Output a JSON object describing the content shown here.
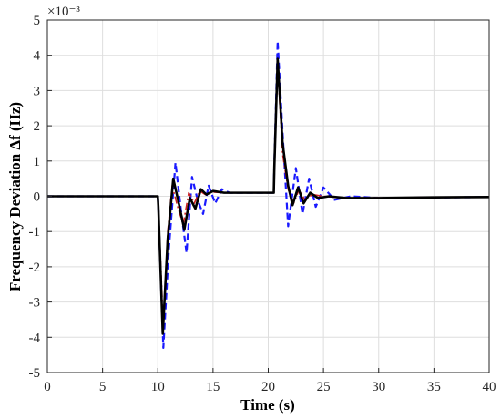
{
  "chart_data": {
    "type": "line",
    "xlabel": "Time (s)",
    "ylabel": "Frequency Deviation Δf (Hz)",
    "y_exponent": "×10⁻³",
    "xlim": [
      0,
      40
    ],
    "ylim": [
      -5,
      5
    ],
    "x_ticks": [
      "0",
      "5",
      "10",
      "15",
      "20",
      "25",
      "30",
      "35",
      "40"
    ],
    "y_ticks": [
      "5",
      "4",
      "3",
      "2",
      "1",
      "0",
      "-1",
      "-2",
      "-3",
      "-4",
      "-5"
    ],
    "grid": true,
    "series": [
      {
        "color": "#000000",
        "style": "solid",
        "x": [
          0,
          10,
          10.05,
          10.45,
          10.9,
          11.4,
          11.9,
          12.4,
          12.9,
          13.4,
          13.9,
          14.4,
          15.0,
          16.0,
          17.0,
          18.0,
          19.0,
          20.0,
          20.5,
          20.55,
          20.85,
          21.3,
          21.8,
          22.2,
          22.7,
          23.2,
          23.8,
          24.5,
          25.5,
          27.0,
          30.0,
          35.0,
          40.0
        ],
        "y": [
          0,
          0,
          -0.3,
          -3.9,
          -1.2,
          0.5,
          -0.2,
          -0.95,
          -0.05,
          -0.35,
          0.2,
          0.05,
          0.15,
          0.1,
          0.1,
          0.1,
          0.1,
          0.1,
          0.1,
          0.8,
          3.9,
          1.5,
          0.3,
          -0.25,
          0.25,
          -0.2,
          0.1,
          -0.05,
          0.0,
          -0.05,
          -0.05,
          -0.03,
          -0.02
        ]
      },
      {
        "color": "#cc2020",
        "style": "dash-dot",
        "x": [
          0,
          10,
          10.05,
          10.5,
          10.9,
          11.3,
          11.8,
          12.3,
          12.8,
          13.3,
          13.8,
          14.3,
          15.0,
          16.0,
          18.0,
          20.0,
          20.5,
          20.55,
          20.85,
          21.3,
          21.8,
          22.3,
          22.8,
          23.3,
          24.0,
          25.0,
          27.0,
          30.0,
          40.0
        ],
        "y": [
          0,
          0,
          -0.3,
          -3.7,
          -1.0,
          0.3,
          -0.3,
          -0.8,
          0.1,
          -0.2,
          0.15,
          0.05,
          0.12,
          0.1,
          0.1,
          0.1,
          0.1,
          0.8,
          3.7,
          1.2,
          0.2,
          -0.2,
          0.2,
          -0.1,
          0.05,
          0.0,
          -0.05,
          -0.04,
          -0.02
        ]
      },
      {
        "color": "#1a1aff",
        "style": "dashed",
        "x": [
          0,
          10,
          10.05,
          10.5,
          11.0,
          11.6,
          12.1,
          12.6,
          13.1,
          13.6,
          14.1,
          14.6,
          15.2,
          15.8,
          16.5,
          18.0,
          20.0,
          20.5,
          20.55,
          20.85,
          21.3,
          21.8,
          22.5,
          23.1,
          23.7,
          24.3,
          25.0,
          26.0,
          27.5,
          30.0,
          40.0
        ],
        "y": [
          0,
          0,
          -0.3,
          -4.3,
          -1.5,
          0.95,
          -0.4,
          -1.6,
          0.55,
          -0.1,
          -0.5,
          0.3,
          -0.2,
          0.2,
          0.1,
          0.1,
          0.1,
          0.1,
          0.9,
          4.4,
          1.8,
          -0.85,
          0.8,
          -0.5,
          0.5,
          -0.3,
          0.25,
          -0.1,
          0.0,
          -0.05,
          -0.02
        ]
      }
    ]
  }
}
